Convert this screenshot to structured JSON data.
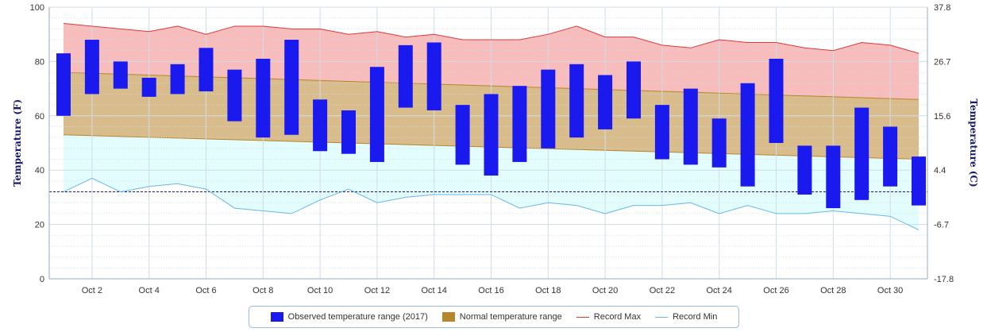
{
  "chart_data": {
    "type": "bar",
    "ylabel": "Temperature (F)",
    "ylabel_right": "Temperature (C)",
    "ylim": [
      0,
      100
    ],
    "yticks": [
      "0",
      "20",
      "40",
      "60",
      "80",
      "100"
    ],
    "yticks_right": [
      "-17.8",
      "-6.7",
      "4.4",
      "15.6",
      "26.7",
      "37.8"
    ],
    "x_tick_labels": [
      "Oct 2",
      "Oct 4",
      "Oct 6",
      "Oct 8",
      "Oct 10",
      "Oct 12",
      "Oct 14",
      "Oct 16",
      "Oct 18",
      "Oct 20",
      "Oct 22",
      "Oct 24",
      "Oct 26",
      "Oct 28",
      "Oct 30"
    ],
    "x_tick_days": [
      2,
      4,
      6,
      8,
      10,
      12,
      14,
      16,
      18,
      20,
      22,
      24,
      26,
      28,
      30
    ],
    "days": [
      1,
      2,
      3,
      4,
      5,
      6,
      7,
      8,
      9,
      10,
      11,
      12,
      13,
      14,
      15,
      16,
      17,
      18,
      19,
      20,
      21,
      22,
      23,
      24,
      25,
      26,
      27,
      28,
      29,
      30,
      31
    ],
    "grid": true,
    "legend_position": "bottom",
    "reference_line_f": 32,
    "series": [
      {
        "name": "Observed temperature range (2017)",
        "color": "#1a1aef",
        "low": [
          60,
          68,
          70,
          67,
          68,
          69,
          58,
          52,
          53,
          47,
          46,
          43,
          63,
          62,
          42,
          38,
          43,
          48,
          52,
          55,
          59,
          44,
          42,
          41,
          34,
          50,
          31,
          26,
          29,
          34,
          27
        ],
        "high": [
          83,
          88,
          80,
          74,
          79,
          85,
          77,
          81,
          88,
          66,
          62,
          78,
          86,
          87,
          64,
          68,
          71,
          77,
          79,
          75,
          80,
          64,
          70,
          59,
          72,
          81,
          49,
          49,
          63,
          56,
          45
        ]
      },
      {
        "name": "Normal temperature range",
        "color": "#b8862a",
        "low_start": 53,
        "low_end": 44,
        "high_start": 76,
        "high_end": 66
      },
      {
        "name": "Record Max",
        "color": "#e0383b",
        "values": [
          94,
          93,
          92,
          91,
          93,
          90,
          93,
          93,
          92,
          92,
          90,
          91,
          89,
          90,
          88,
          88,
          88,
          90,
          93,
          89,
          89,
          86,
          85,
          88,
          87,
          87,
          85,
          84,
          87,
          86,
          83
        ]
      },
      {
        "name": "Record Min",
        "color": "#66b8e8",
        "values": [
          32,
          37,
          32,
          34,
          35,
          33,
          26,
          25,
          24,
          29,
          33,
          28,
          30,
          31,
          31,
          31,
          26,
          28,
          27,
          24,
          27,
          27,
          28,
          24,
          27,
          24,
          24,
          25,
          24,
          23,
          18
        ]
      }
    ]
  },
  "legend": {
    "observed": "Observed temperature range (2017)",
    "normal": "Normal temperature range",
    "record_max": "Record Max",
    "record_min": "Record Min"
  },
  "colors": {
    "record_band": "#f7bcbc",
    "normal_band": "#d9bc8c",
    "low_band": "#e3fcfd",
    "grid": "#d0dce8",
    "axis": "#99aabb",
    "freeze_line": "#1a1a8a"
  }
}
